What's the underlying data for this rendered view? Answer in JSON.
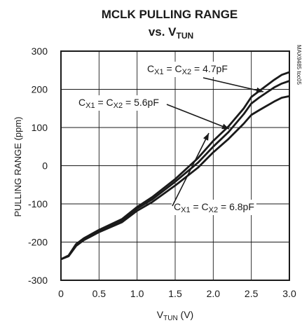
{
  "chart_data": {
    "type": "line",
    "title": "MCLK PULLING RANGE",
    "subtitle": "vs. V",
    "subtitle_sub": "TUN",
    "xlabel": "V",
    "xlabel_sub": "TUN",
    "xlabel_unit": " (V)",
    "ylabel": "PULLING RANGE (ppm)",
    "xlim": [
      0,
      3.0
    ],
    "ylim": [
      -300,
      300
    ],
    "x_ticks": [
      0,
      0.5,
      1.0,
      1.5,
      2.0,
      2.5,
      3.0
    ],
    "x_tick_labels": [
      "0",
      "0.5",
      "1.0",
      "1.5",
      "2.0",
      "2.5",
      "3.0"
    ],
    "y_ticks": [
      300,
      200,
      100,
      0,
      -100,
      -200,
      -300
    ],
    "y_tick_labels": [
      "300",
      "200",
      "100",
      "0",
      "-100",
      "-200",
      "-300"
    ],
    "grid": true,
    "watermark": "MAX9485 toc05",
    "series": [
      {
        "name": "CX1 = CX2 = 4.7pF",
        "x": [
          0,
          0.1,
          0.2,
          0.3,
          0.5,
          0.8,
          1.0,
          1.2,
          1.5,
          1.8,
          2.0,
          2.2,
          2.4,
          2.5,
          2.6,
          2.8,
          2.9,
          3.0
        ],
        "y": [
          -245,
          -235,
          -205,
          -190,
          -168,
          -140,
          -108,
          -82,
          -35,
          20,
          65,
          103,
          150,
          180,
          195,
          225,
          238,
          245
        ]
      },
      {
        "name": "CX1 = CX2 = 5.6pF",
        "x": [
          0,
          0.1,
          0.2,
          0.3,
          0.5,
          0.8,
          1.0,
          1.2,
          1.5,
          1.8,
          2.0,
          2.2,
          2.4,
          2.5,
          2.6,
          2.8,
          2.9,
          3.0
        ],
        "y": [
          -245,
          -236,
          -207,
          -192,
          -170,
          -143,
          -112,
          -88,
          -42,
          8,
          50,
          88,
          135,
          163,
          178,
          205,
          215,
          222
        ]
      },
      {
        "name": "CX1 = CX2 = 6.8pF",
        "x": [
          0,
          0.1,
          0.2,
          0.3,
          0.5,
          0.8,
          1.0,
          1.2,
          1.5,
          1.8,
          2.0,
          2.2,
          2.4,
          2.5,
          2.6,
          2.8,
          2.9,
          3.0
        ],
        "y": [
          -245,
          -237,
          -210,
          -195,
          -174,
          -148,
          -118,
          -95,
          -52,
          -5,
          35,
          70,
          110,
          133,
          145,
          168,
          178,
          182
        ]
      }
    ],
    "annotations": [
      {
        "base": "C",
        "s1": "X1",
        "mid": " = C",
        "s2": "X2",
        "tail": " = 4.7pF",
        "series": 0
      },
      {
        "base": "C",
        "s1": "X1",
        "mid": " = C",
        "s2": "X2",
        "tail": " = 5.6pF",
        "series": 1
      },
      {
        "base": "C",
        "s1": "X1",
        "mid": " = C",
        "s2": "X2",
        "tail": " = 6.8pF",
        "series": 2
      }
    ]
  }
}
